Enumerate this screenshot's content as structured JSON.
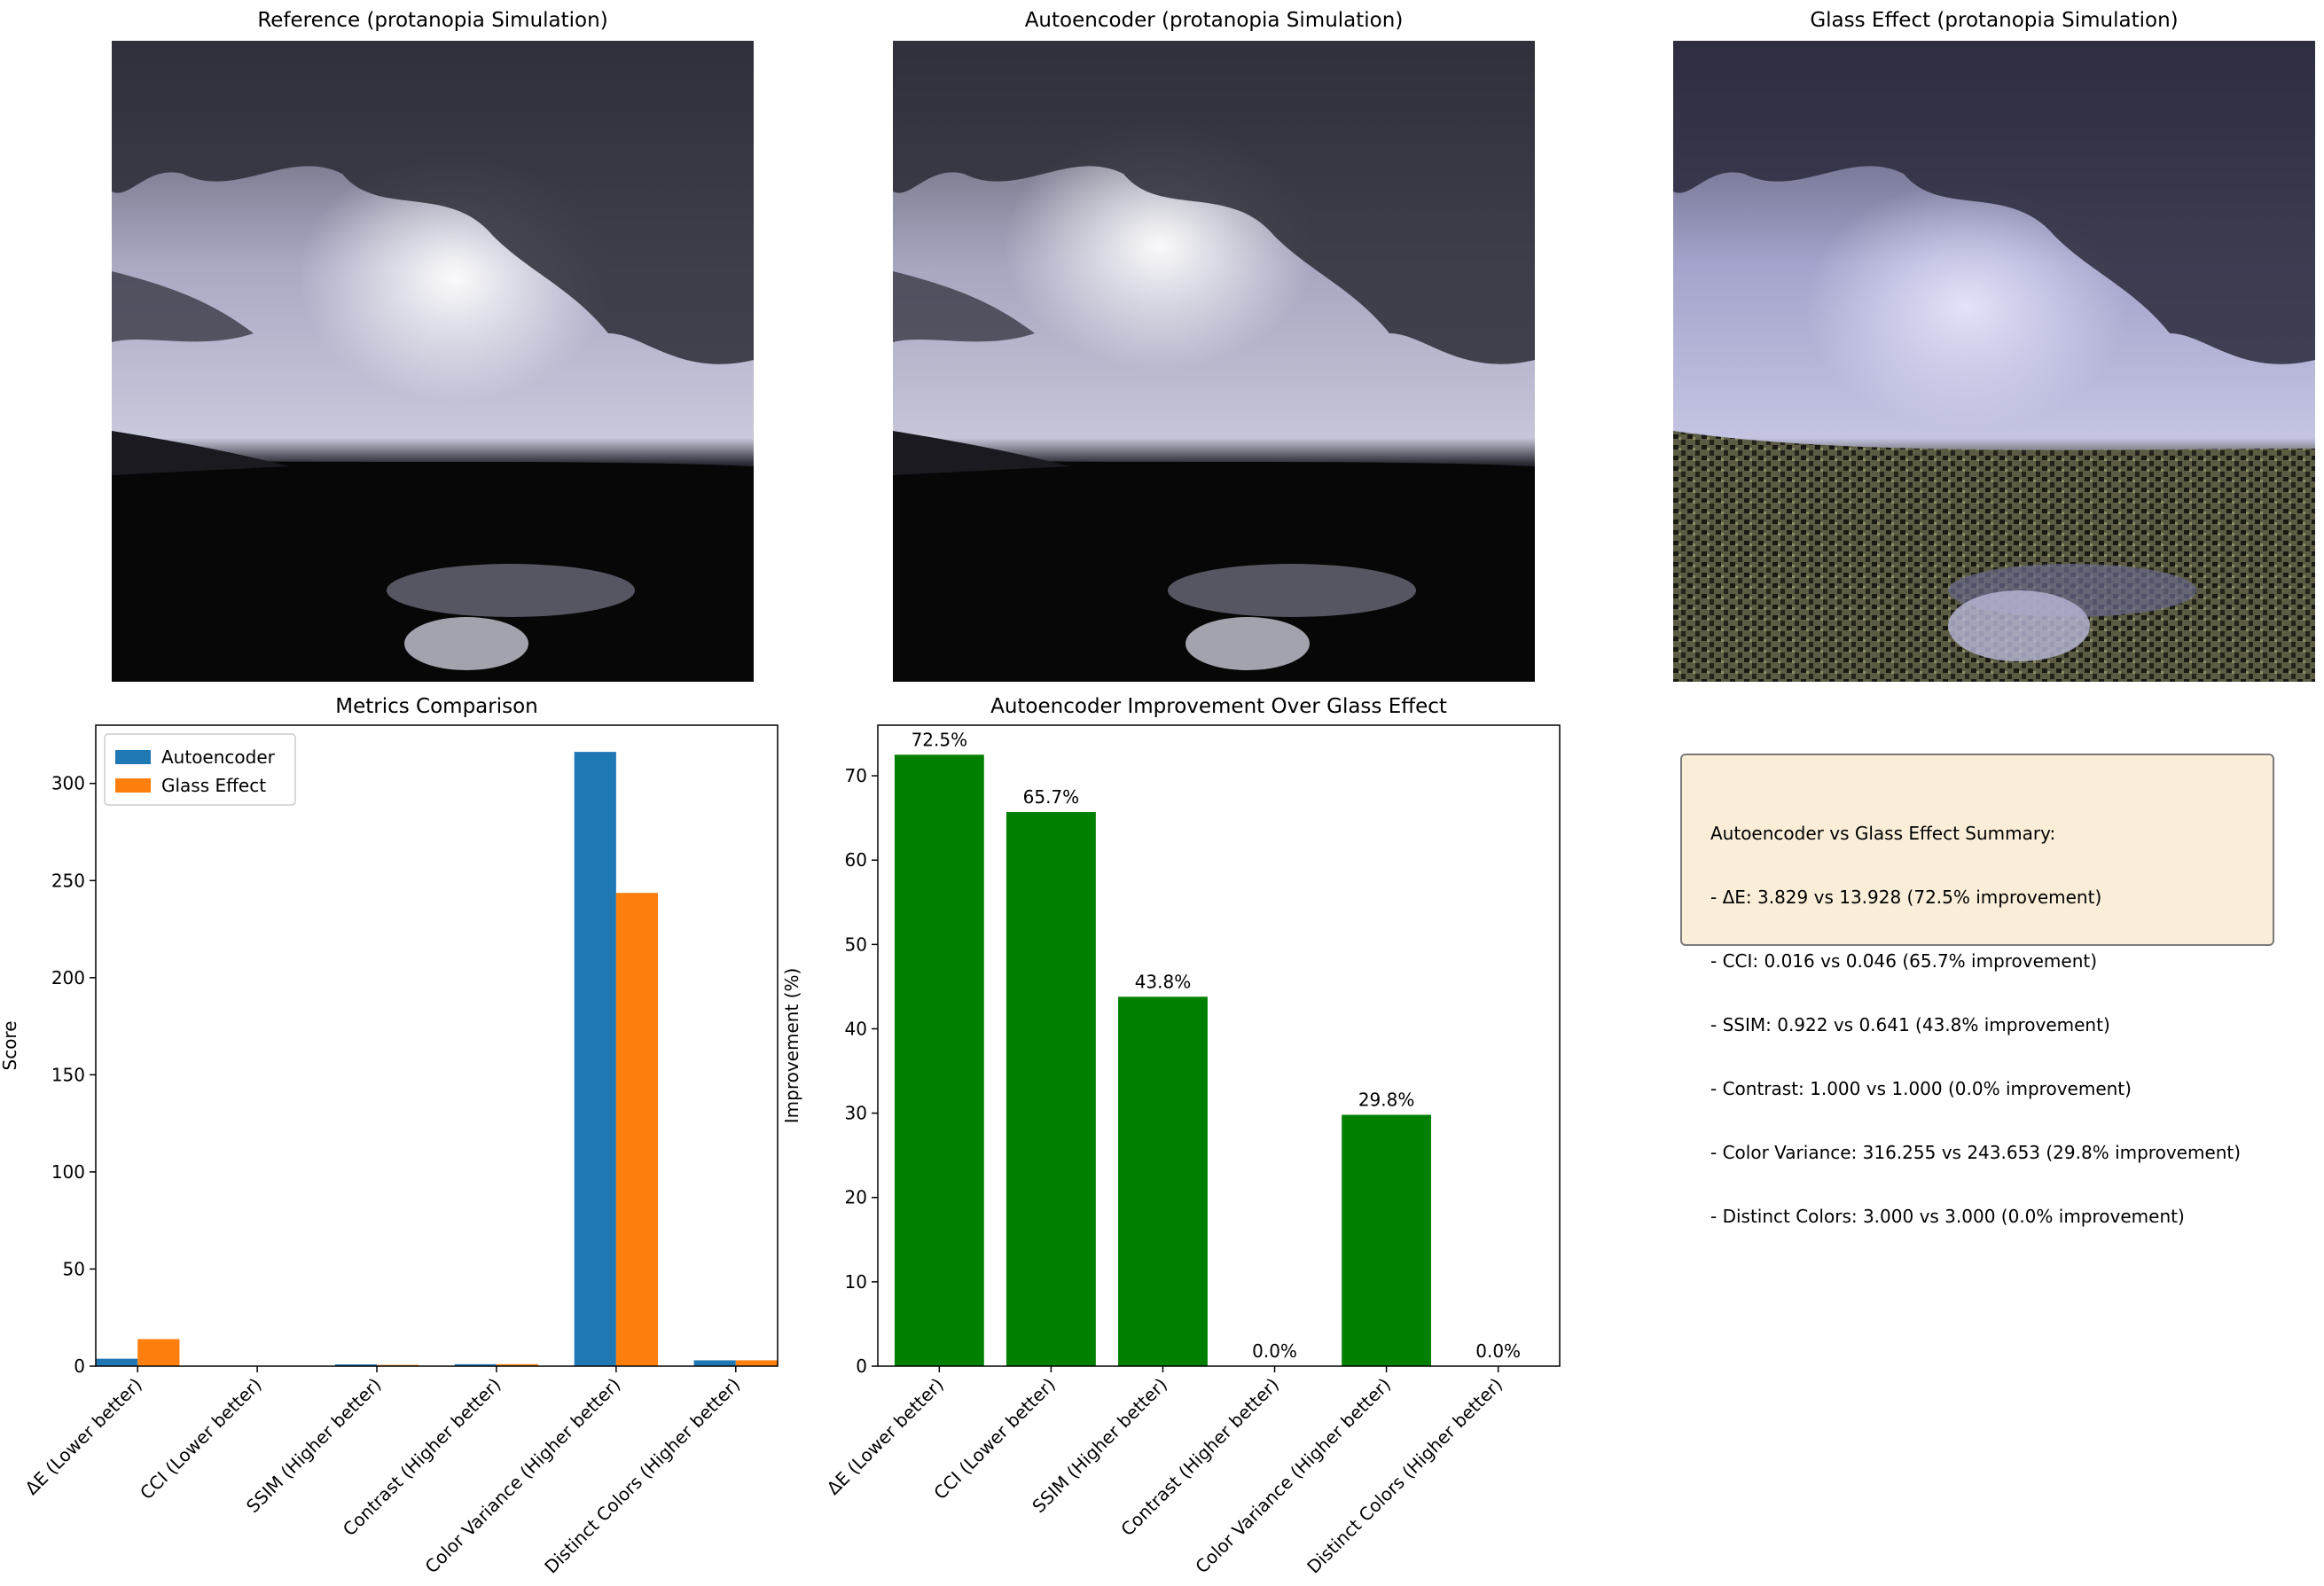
{
  "panels": {
    "reference_title": "Reference (protanopia Simulation)",
    "autoencoder_title": "Autoencoder (protanopia Simulation)",
    "glass_title": "Glass Effect (protanopia Simulation)"
  },
  "colors": {
    "autoencoder": "#1f77b4",
    "glass": "#ff7f0e",
    "improvement": "#008000",
    "summary_bg": "#f5deb3"
  },
  "chart_data": [
    {
      "type": "bar",
      "title": "Metrics Comparison",
      "xlabel": "",
      "ylabel": "Score",
      "categories": [
        "ΔE (Lower better)",
        "CCI (Lower better)",
        "SSIM (Higher better)",
        "Contrast (Higher better)",
        "Color Variance (Higher better)",
        "Distinct Colors (Higher better)"
      ],
      "series": [
        {
          "name": "Autoencoder",
          "values": [
            3.829,
            0.016,
            0.922,
            1.0,
            316.255,
            3.0
          ]
        },
        {
          "name": "Glass Effect",
          "values": [
            13.928,
            0.046,
            0.641,
            1.0,
            243.653,
            3.0
          ]
        }
      ],
      "ylim": [
        0,
        330
      ],
      "yticks": [
        0,
        50,
        100,
        150,
        200,
        250,
        300
      ],
      "legend": "top-left",
      "grid": false
    },
    {
      "type": "bar",
      "title": "Autoencoder Improvement Over Glass Effect",
      "xlabel": "",
      "ylabel": "Improvement (%)",
      "categories": [
        "ΔE (Lower better)",
        "CCI (Lower better)",
        "SSIM (Higher better)",
        "Contrast (Higher better)",
        "Color Variance (Higher better)",
        "Distinct Colors (Higher better)"
      ],
      "values": [
        72.5,
        65.7,
        43.8,
        0.0,
        29.8,
        0.0
      ],
      "data_labels": [
        "72.5%",
        "65.7%",
        "43.8%",
        "0.0%",
        "29.8%",
        "0.0%"
      ],
      "ylim": [
        0,
        76
      ],
      "yticks": [
        0,
        10,
        20,
        30,
        40,
        50,
        60,
        70
      ],
      "grid": false
    }
  ],
  "summary": {
    "lines": [
      "Autoencoder vs Glass Effect Summary:",
      "- ΔE: 3.829 vs 13.928 (72.5% improvement)",
      "- CCI: 0.016 vs 0.046 (65.7% improvement)",
      "- SSIM: 0.922 vs 0.641 (43.8% improvement)",
      "- Contrast: 1.000 vs 1.000 (0.0% improvement)",
      "- Color Variance: 316.255 vs 243.653 (29.8% improvement)",
      "- Distinct Colors: 3.000 vs 3.000 (0.0% improvement)"
    ]
  }
}
